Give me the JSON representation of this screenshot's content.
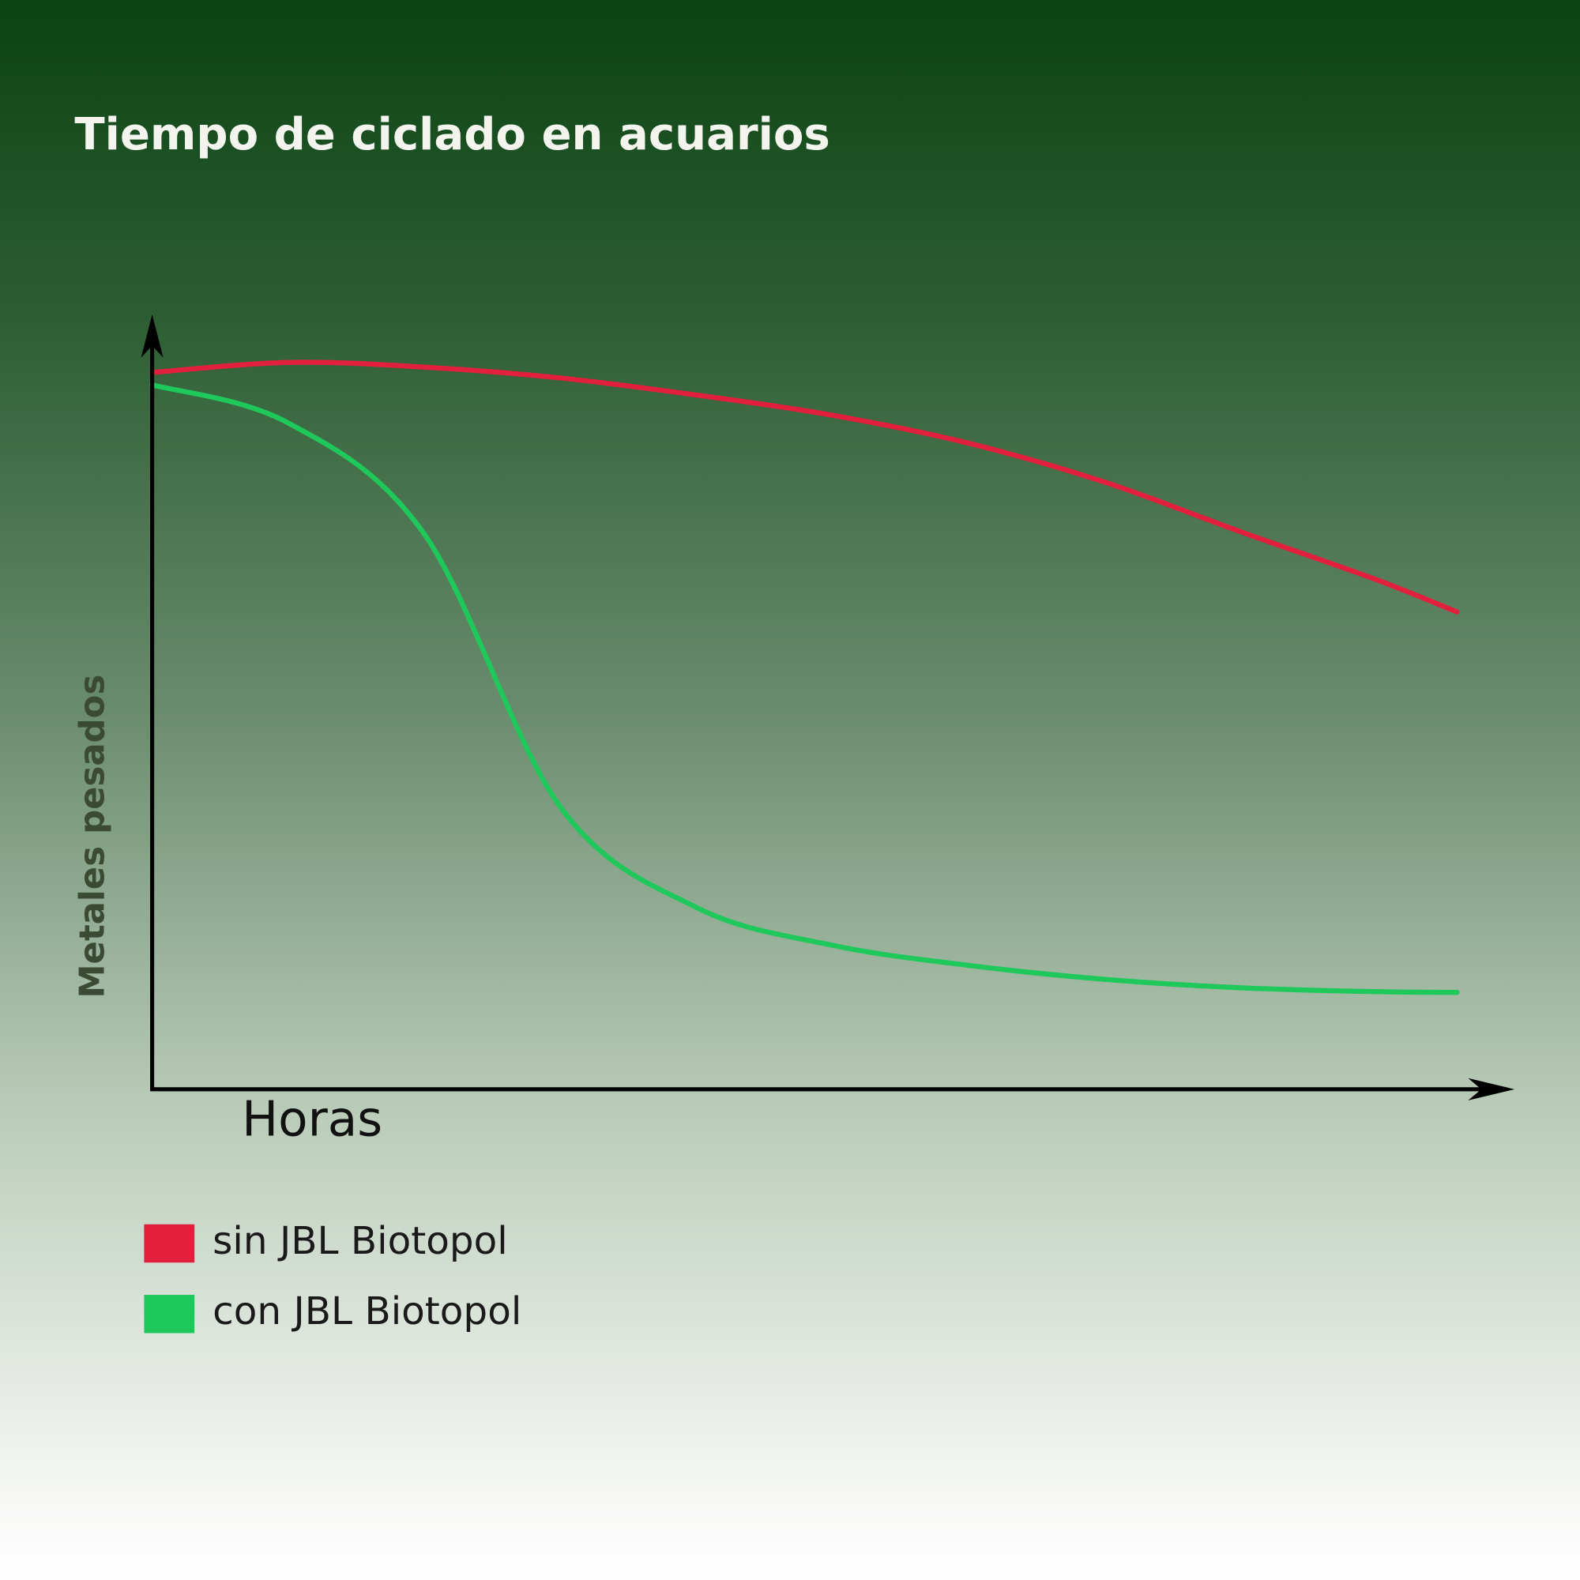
{
  "chart_data": {
    "type": "line",
    "title": "Tiempo de ciclado en acuarios",
    "x_label": "Horas",
    "y_label": "Metales pesados",
    "x": [
      0,
      10,
      20,
      30,
      40,
      50,
      60,
      70,
      80,
      90,
      96
    ],
    "xlim": [
      0,
      100
    ],
    "ylim": [
      0,
      100
    ],
    "series": [
      {
        "name": "sin JBL Biotopol",
        "color": "#e2203e",
        "values": [
          92.5,
          93.8,
          93.2,
          91.8,
          89.6,
          87.0,
          83.4,
          78.4,
          72.0,
          65.8,
          61.6
        ]
      },
      {
        "name": "con JBL Biotopol",
        "color": "#1ec85a",
        "values": [
          90.9,
          86.0,
          71.7,
          36.5,
          23.5,
          18.6,
          16.0,
          14.2,
          13.1,
          12.6,
          12.5
        ]
      }
    ]
  }
}
